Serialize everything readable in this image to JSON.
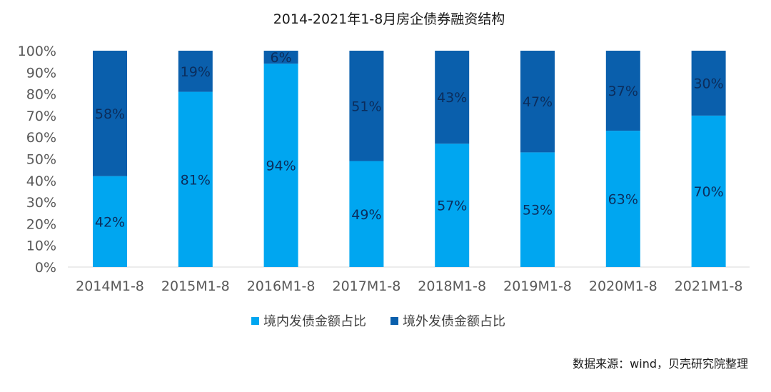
{
  "chart_data": {
    "type": "bar",
    "stacked": true,
    "title": "2014-2021年1-8月房企债券融资结构",
    "categories": [
      "2014M1-8",
      "2015M1-8",
      "2016M1-8",
      "2017M1-8",
      "2018M1-8",
      "2019M1-8",
      "2020M1-8",
      "2021M1-8"
    ],
    "series": [
      {
        "name": "境内发债金额占比",
        "color": "#00a6f0",
        "values": [
          42,
          81,
          94,
          49,
          57,
          53,
          63,
          70
        ],
        "labels": [
          "42%",
          "81%",
          "94%",
          "49%",
          "57%",
          "53%",
          "63%",
          "70%"
        ]
      },
      {
        "name": "境外发债金额占比",
        "color": "#0a5fac",
        "values": [
          58,
          19,
          6,
          51,
          43,
          47,
          37,
          30
        ],
        "labels": [
          "58%",
          "19%",
          "6%",
          "51%",
          "43%",
          "47%",
          "37%",
          "30%"
        ]
      }
    ],
    "ylim": [
      0,
      100
    ],
    "yticks": [
      "0%",
      "10%",
      "20%",
      "30%",
      "40%",
      "50%",
      "60%",
      "70%",
      "80%",
      "90%",
      "100%"
    ],
    "grid": false,
    "legend": "bottom"
  },
  "source_note": "数据来源：wind，贝壳研究院整理"
}
